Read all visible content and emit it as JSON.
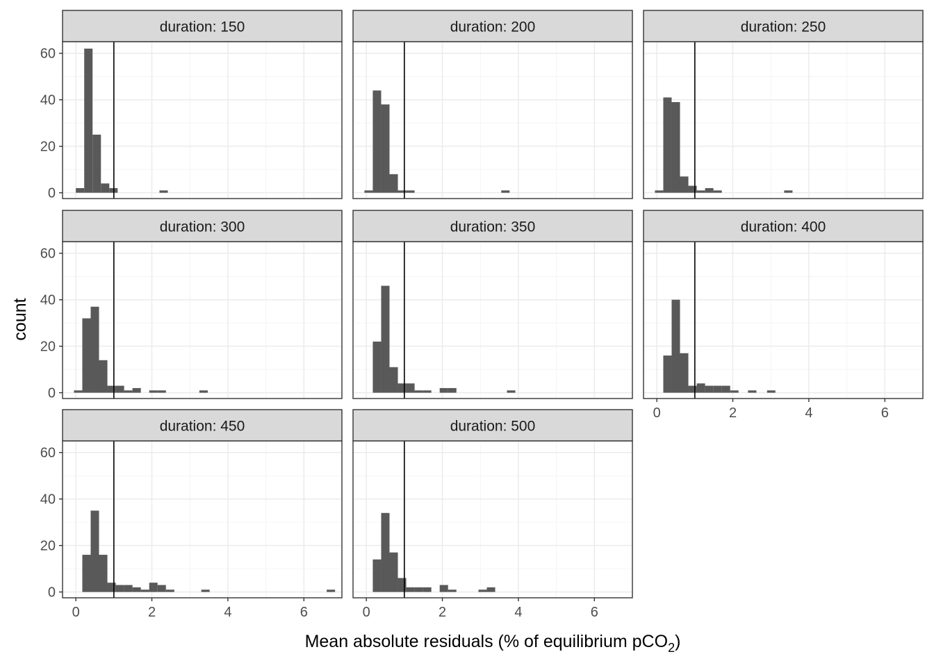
{
  "chart_data": {
    "type": "bar",
    "subtype": "faceted-histogram",
    "xlabel_main": "Mean absolute residuals (% of equilibrium pCO",
    "xlabel_sub": "2",
    "xlabel_close": ")",
    "ylabel": "count",
    "xlim": [
      -0.35,
      7.0
    ],
    "ylim": [
      -2.5,
      65
    ],
    "x_ticks": [
      0,
      2,
      4,
      6
    ],
    "y_ticks": [
      0,
      20,
      40,
      60
    ],
    "bin_width": 0.22,
    "reference_line_x": 1,
    "grid": true,
    "colors": {
      "bar": "#595959",
      "strip": "#d9d9d9",
      "grid_major": "#ebebeb",
      "grid_minor": "#f4f4f4",
      "frame": "#333333",
      "text": "#4d4d4d",
      "vline": "#000000"
    },
    "facets": [
      {
        "label": "duration: 150",
        "bins": [
          [
            0.0,
            2
          ],
          [
            0.22,
            62
          ],
          [
            0.44,
            25
          ],
          [
            0.66,
            4
          ],
          [
            0.88,
            2
          ],
          [
            2.2,
            1
          ]
        ]
      },
      {
        "label": "duration: 200",
        "bins": [
          [
            -0.05,
            1
          ],
          [
            0.17,
            44
          ],
          [
            0.39,
            38
          ],
          [
            0.61,
            8
          ],
          [
            0.83,
            1
          ],
          [
            1.05,
            1
          ],
          [
            3.55,
            1
          ]
        ]
      },
      {
        "label": "duration: 250",
        "bins": [
          [
            -0.05,
            1
          ],
          [
            0.17,
            41
          ],
          [
            0.39,
            39
          ],
          [
            0.61,
            7
          ],
          [
            0.83,
            3
          ],
          [
            1.05,
            1
          ],
          [
            1.27,
            2
          ],
          [
            1.49,
            1
          ],
          [
            3.35,
            1
          ]
        ]
      },
      {
        "label": "duration: 300",
        "bins": [
          [
            -0.05,
            1
          ],
          [
            0.17,
            32
          ],
          [
            0.39,
            37
          ],
          [
            0.61,
            14
          ],
          [
            0.83,
            3
          ],
          [
            1.05,
            3
          ],
          [
            1.27,
            1
          ],
          [
            1.49,
            2
          ],
          [
            1.93,
            1
          ],
          [
            2.15,
            1
          ],
          [
            3.25,
            1
          ]
        ]
      },
      {
        "label": "duration: 350",
        "bins": [
          [
            0.17,
            22
          ],
          [
            0.39,
            46
          ],
          [
            0.61,
            11
          ],
          [
            0.83,
            4
          ],
          [
            1.05,
            4
          ],
          [
            1.27,
            1
          ],
          [
            1.49,
            1
          ],
          [
            1.93,
            2
          ],
          [
            2.15,
            2
          ],
          [
            3.7,
            1
          ]
        ]
      },
      {
        "label": "duration: 400",
        "bins": [
          [
            0.17,
            16
          ],
          [
            0.39,
            40
          ],
          [
            0.61,
            17
          ],
          [
            0.83,
            3
          ],
          [
            1.05,
            4
          ],
          [
            1.27,
            3
          ],
          [
            1.49,
            3
          ],
          [
            1.71,
            3
          ],
          [
            1.93,
            1
          ],
          [
            2.4,
            1
          ],
          [
            2.9,
            1
          ]
        ]
      },
      {
        "label": "duration: 450",
        "bins": [
          [
            0.17,
            16
          ],
          [
            0.39,
            35
          ],
          [
            0.61,
            16
          ],
          [
            0.83,
            4
          ],
          [
            1.05,
            3
          ],
          [
            1.27,
            3
          ],
          [
            1.49,
            2
          ],
          [
            1.71,
            1
          ],
          [
            1.93,
            4
          ],
          [
            2.15,
            3
          ],
          [
            2.37,
            1
          ],
          [
            3.3,
            1
          ],
          [
            6.6,
            1
          ]
        ]
      },
      {
        "label": "duration: 500",
        "bins": [
          [
            0.17,
            14
          ],
          [
            0.39,
            34
          ],
          [
            0.61,
            17
          ],
          [
            0.83,
            6
          ],
          [
            1.05,
            2
          ],
          [
            1.27,
            2
          ],
          [
            1.49,
            2
          ],
          [
            1.93,
            3
          ],
          [
            2.15,
            1
          ],
          [
            2.95,
            1
          ],
          [
            3.17,
            2
          ]
        ]
      }
    ]
  }
}
